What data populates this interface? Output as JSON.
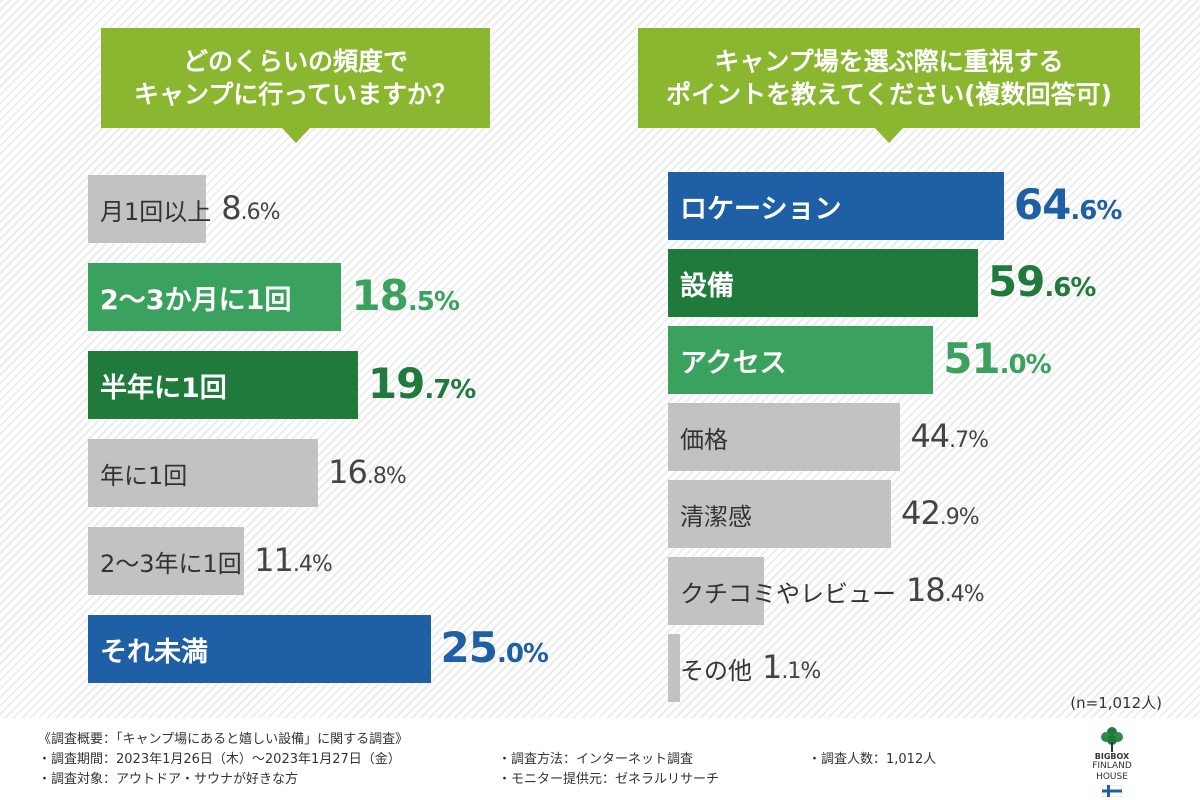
{
  "chart_data": [
    {
      "type": "bar",
      "orientation": "horizontal",
      "title_lines": [
        "どのくらいの頻度で",
        "キャンプに行っていますか？"
      ],
      "categories": [
        "月1回以上",
        "2～3か月に1回",
        "半年に1回",
        "年に1回",
        "2～3年に1回",
        "それ未満"
      ],
      "values": [
        8.6,
        18.5,
        19.7,
        16.8,
        11.4,
        25.0
      ],
      "value_labels": [
        {
          "int": "8.6",
          "unit": "%"
        },
        {
          "int": "18.5",
          "unit": "%"
        },
        {
          "int": "19.7",
          "unit": "%"
        },
        {
          "int": "16.8",
          "unit": "%"
        },
        {
          "int": "11.4",
          "unit": "%"
        },
        {
          "int": "25.0",
          "unit": "%"
        }
      ],
      "bar_colors": [
        "#c2c2c2",
        "#3aa15e",
        "#1f7a3c",
        "#c2c2c2",
        "#c2c2c2",
        "#1e5fa6"
      ],
      "highlight": [
        false,
        true,
        true,
        false,
        false,
        true
      ],
      "xlim": [
        0,
        30
      ]
    },
    {
      "type": "bar",
      "orientation": "horizontal",
      "title_lines": [
        "キャンプ場を選ぶ際に重視する",
        "ポイントを教えてください(複数回答可)"
      ],
      "categories": [
        "ロケーション",
        "設備",
        "アクセス",
        "価格",
        "清潔感",
        "クチコミやレビュー",
        "その他"
      ],
      "values": [
        64.6,
        59.6,
        51.0,
        44.7,
        42.9,
        18.4,
        1.1
      ],
      "value_labels": [
        {
          "int": "64.6",
          "unit": "%"
        },
        {
          "int": "59.6",
          "unit": "%"
        },
        {
          "int": "51.0",
          "unit": "%"
        },
        {
          "int": "44.7",
          "unit": "%"
        },
        {
          "int": "42.9",
          "unit": "%"
        },
        {
          "int": "18.4",
          "unit": "%"
        },
        {
          "int": "1.1",
          "unit": "%"
        }
      ],
      "bar_colors": [
        "#1e5fa6",
        "#1f7a3c",
        "#3aa15e",
        "#c2c2c2",
        "#c2c2c2",
        "#c2c2c2",
        "#c2c2c2"
      ],
      "highlight": [
        true,
        true,
        true,
        false,
        false,
        false,
        false
      ],
      "xlim": [
        0,
        75
      ]
    }
  ],
  "sample_note": "(n=1,012人)",
  "footer": {
    "line1": "《調査概要：「キャンプ場にあると嬉しい設備」に関する調査》",
    "line2": "・調査期間：2023年1月26日（木）～2023年1月27日（金）",
    "line3": "・調査対象：アウトドア・サウナが好きな方",
    "method": "・調査方法：インターネット調査",
    "provider": "・モニター提供元：ゼネラルリサーチ",
    "count": "・調査人数：1,012人"
  },
  "logo": {
    "line1": "BIGBOX",
    "line2": "FINLAND HOUSE",
    "icon": "tree-flag-logo"
  }
}
